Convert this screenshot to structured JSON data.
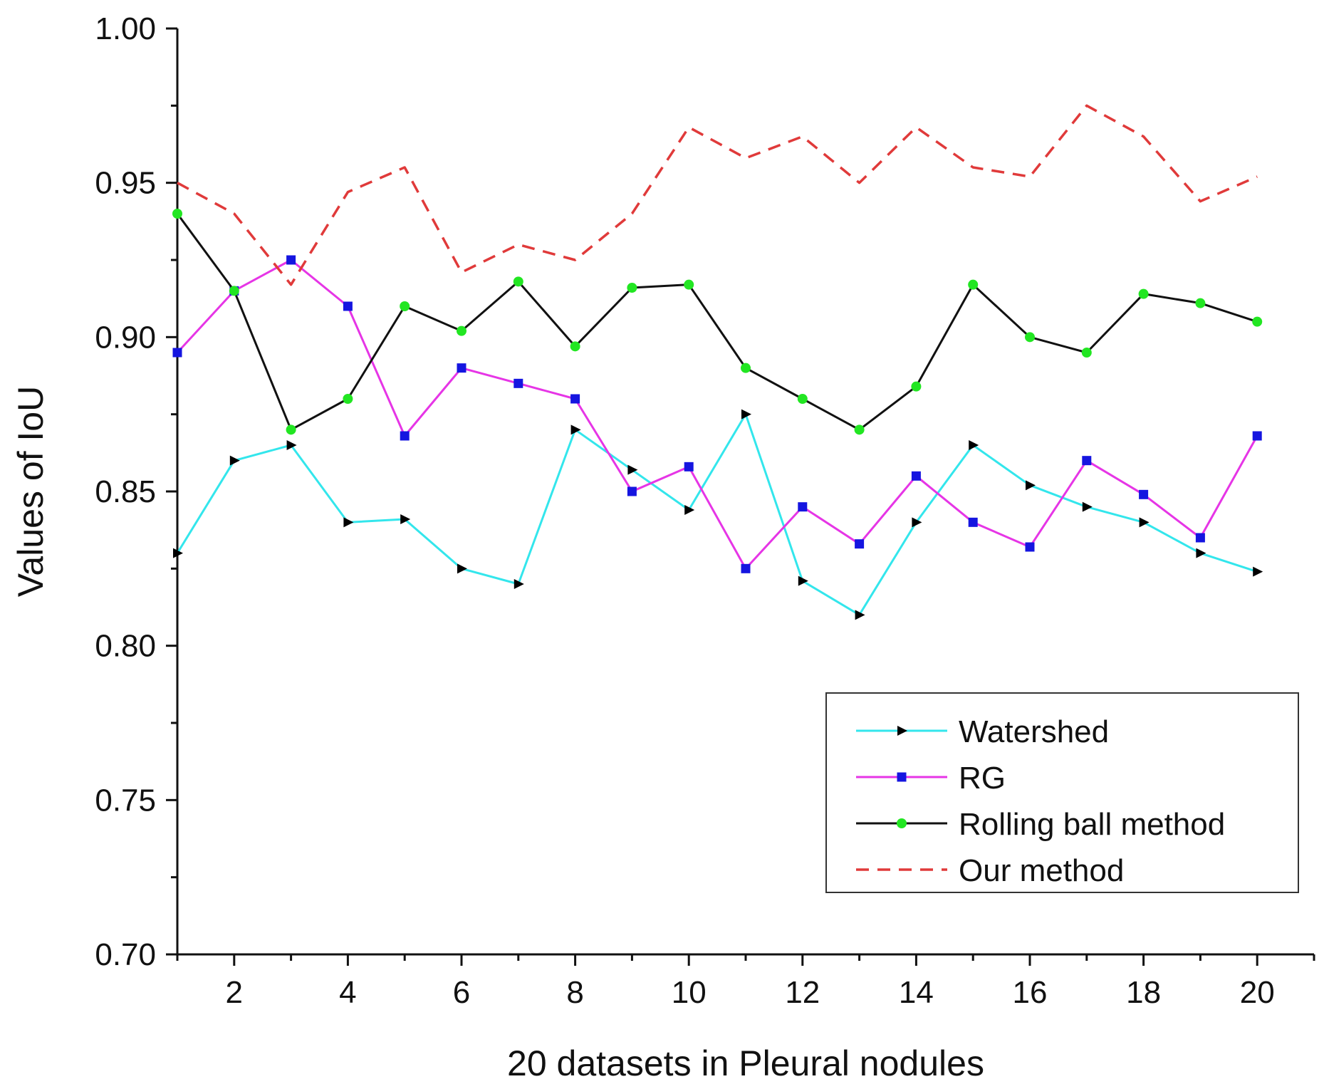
{
  "chart_data": {
    "type": "line",
    "title": "",
    "xlabel": "20 datasets in Pleural nodules",
    "ylabel": "Values of IoU",
    "x": [
      1,
      2,
      3,
      4,
      5,
      6,
      7,
      8,
      9,
      10,
      11,
      12,
      13,
      14,
      15,
      16,
      17,
      18,
      19,
      20
    ],
    "xlim": [
      1,
      21
    ],
    "ylim": [
      0.7,
      1.0
    ],
    "x_ticks": [
      2,
      4,
      6,
      8,
      10,
      12,
      14,
      16,
      18,
      20
    ],
    "x_tick_labels": [
      "2",
      "4",
      "6",
      "8",
      "10",
      "12",
      "14",
      "16",
      "18",
      "20"
    ],
    "y_ticks": [
      0.7,
      0.75,
      0.8,
      0.85,
      0.9,
      0.95,
      1.0
    ],
    "y_tick_labels": [
      "0.70",
      "0.75",
      "0.80",
      "0.85",
      "0.90",
      "0.95",
      "1.00"
    ],
    "grid": false,
    "legend_position": "bottom-right",
    "series": [
      {
        "name": "Watershed",
        "color": "#33e6ec",
        "marker": "triangle-right",
        "marker_color": "#000000",
        "dash": "solid",
        "values": [
          0.83,
          0.86,
          0.865,
          0.84,
          0.841,
          0.825,
          0.82,
          0.87,
          0.857,
          0.844,
          0.875,
          0.821,
          0.81,
          0.84,
          0.865,
          0.852,
          0.845,
          0.84,
          0.83,
          0.824
        ]
      },
      {
        "name": "RG",
        "color": "#e635e6",
        "marker": "square",
        "marker_color": "#1515e0",
        "dash": "solid",
        "values": [
          0.895,
          0.915,
          0.925,
          0.91,
          0.868,
          0.89,
          0.885,
          0.88,
          0.85,
          0.858,
          0.825,
          0.845,
          0.833,
          0.855,
          0.84,
          0.832,
          0.86,
          0.849,
          0.835,
          0.868
        ]
      },
      {
        "name": "Rolling ball method",
        "color": "#111111",
        "marker": "circle",
        "marker_color": "#22e622",
        "dash": "solid",
        "values": [
          0.94,
          0.915,
          0.87,
          0.88,
          0.91,
          0.902,
          0.918,
          0.897,
          0.916,
          0.917,
          0.89,
          0.88,
          0.87,
          0.884,
          0.917,
          0.9,
          0.895,
          0.914,
          0.911,
          0.905
        ]
      },
      {
        "name": "Our method",
        "color": "#e03a3a",
        "marker": "none",
        "marker_color": "",
        "dash": "dashed",
        "values": [
          0.95,
          0.94,
          0.917,
          0.947,
          0.955,
          0.921,
          0.93,
          0.925,
          0.94,
          0.968,
          0.958,
          0.965,
          0.95,
          0.968,
          0.955,
          0.952,
          0.975,
          0.965,
          0.944,
          0.952
        ]
      }
    ]
  }
}
